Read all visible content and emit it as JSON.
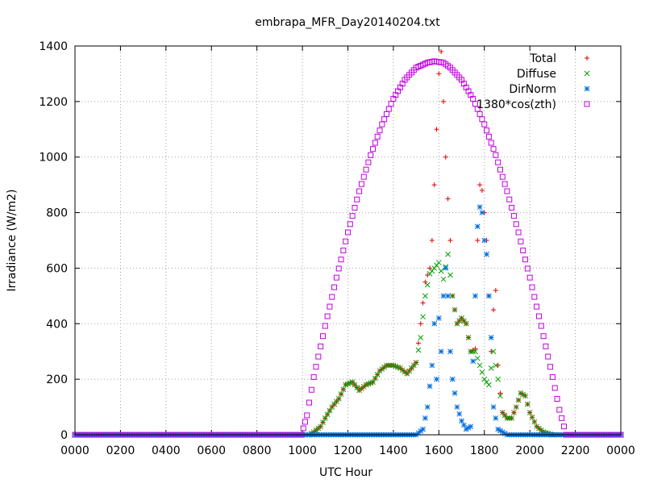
{
  "chart_data": {
    "type": "scatter",
    "title": "embrapa_MFR_Day20140204.txt",
    "xlabel": "UTC Hour",
    "ylabel": "Irradiance (W/m2)",
    "xlim": [
      0,
      24
    ],
    "ylim": [
      0,
      1400
    ],
    "x_ticks": [
      0,
      2,
      4,
      6,
      8,
      10,
      12,
      14,
      16,
      18,
      20,
      22,
      24
    ],
    "x_tick_labels": [
      "0000",
      "0200",
      "0400",
      "0600",
      "0800",
      "1000",
      "1200",
      "1400",
      "1600",
      "1800",
      "2000",
      "2200",
      "0000"
    ],
    "y_ticks": [
      0,
      200,
      400,
      600,
      800,
      1000,
      1200,
      1400
    ],
    "y_tick_labels": [
      "0",
      "200",
      "400",
      "600",
      "800",
      "1000",
      "1200",
      "1400"
    ],
    "grid": true,
    "legend_position": "top-right",
    "series": [
      {
        "name": "Total",
        "marker": "plus",
        "color": "#e00000",
        "points": [
          [
            0,
            0
          ],
          [
            2,
            0
          ],
          [
            4,
            0
          ],
          [
            6,
            0
          ],
          [
            8,
            0
          ],
          [
            10,
            0
          ],
          [
            10.3,
            0
          ],
          [
            10.5,
            10
          ],
          [
            10.8,
            30
          ],
          [
            11,
            60
          ],
          [
            11.3,
            100
          ],
          [
            11.6,
            130
          ],
          [
            11.9,
            180
          ],
          [
            12.2,
            190
          ],
          [
            12.5,
            160
          ],
          [
            12.8,
            180
          ],
          [
            13.1,
            190
          ],
          [
            13.4,
            230
          ],
          [
            13.7,
            250
          ],
          [
            14,
            250
          ],
          [
            14.3,
            240
          ],
          [
            14.6,
            220
          ],
          [
            15,
            260
          ],
          [
            15.2,
            400
          ],
          [
            15.4,
            550
          ],
          [
            15.6,
            600
          ],
          [
            15.7,
            700
          ],
          [
            15.8,
            900
          ],
          [
            15.9,
            1100
          ],
          [
            16,
            1300
          ],
          [
            16.1,
            1380
          ],
          [
            16.2,
            1200
          ],
          [
            16.3,
            1000
          ],
          [
            16.4,
            850
          ],
          [
            16.5,
            700
          ],
          [
            16.6,
            500
          ],
          [
            16.8,
            400
          ],
          [
            17,
            420
          ],
          [
            17.2,
            400
          ],
          [
            17.4,
            300
          ],
          [
            17.6,
            310
          ],
          [
            17.7,
            700
          ],
          [
            17.8,
            900
          ],
          [
            17.9,
            880
          ],
          [
            18,
            800
          ],
          [
            18.1,
            700
          ],
          [
            18.2,
            500
          ],
          [
            18.3,
            300
          ],
          [
            18.4,
            450
          ],
          [
            18.5,
            520
          ],
          [
            18.6,
            250
          ],
          [
            18.7,
            150
          ],
          [
            18.8,
            80
          ],
          [
            19,
            60
          ],
          [
            19.2,
            60
          ],
          [
            19.4,
            100
          ],
          [
            19.6,
            150
          ],
          [
            19.8,
            140
          ],
          [
            20,
            80
          ],
          [
            20.3,
            30
          ],
          [
            20.6,
            10
          ],
          [
            21,
            0
          ],
          [
            22,
            0
          ],
          [
            24,
            0
          ]
        ]
      },
      {
        "name": "Diffuse",
        "marker": "cross",
        "color": "#00a000",
        "points": [
          [
            10.3,
            0
          ],
          [
            10.5,
            10
          ],
          [
            10.8,
            30
          ],
          [
            11,
            60
          ],
          [
            11.3,
            100
          ],
          [
            11.6,
            130
          ],
          [
            11.9,
            180
          ],
          [
            12.2,
            190
          ],
          [
            12.5,
            160
          ],
          [
            12.8,
            180
          ],
          [
            13.1,
            190
          ],
          [
            13.4,
            230
          ],
          [
            13.7,
            250
          ],
          [
            14,
            250
          ],
          [
            14.3,
            240
          ],
          [
            14.6,
            220
          ],
          [
            15,
            260
          ],
          [
            15.2,
            350
          ],
          [
            15.4,
            500
          ],
          [
            15.6,
            580
          ],
          [
            15.8,
            600
          ],
          [
            16,
            620
          ],
          [
            16.2,
            560
          ],
          [
            16.4,
            650
          ],
          [
            16.6,
            500
          ],
          [
            16.8,
            400
          ],
          [
            17,
            420
          ],
          [
            17.2,
            400
          ],
          [
            17.4,
            300
          ],
          [
            17.6,
            300
          ],
          [
            17.8,
            250
          ],
          [
            18,
            200
          ],
          [
            18.2,
            180
          ],
          [
            18.4,
            300
          ],
          [
            18.6,
            200
          ],
          [
            18.8,
            80
          ],
          [
            19,
            60
          ],
          [
            19.2,
            60
          ],
          [
            19.4,
            100
          ],
          [
            19.6,
            150
          ],
          [
            19.8,
            140
          ],
          [
            20,
            80
          ],
          [
            20.3,
            30
          ],
          [
            20.6,
            10
          ],
          [
            21,
            0
          ]
        ]
      },
      {
        "name": "DirNorm",
        "marker": "star",
        "color": "#0070e0",
        "points": [
          [
            0,
            0
          ],
          [
            4,
            0
          ],
          [
            8,
            0
          ],
          [
            10,
            0
          ],
          [
            12,
            0
          ],
          [
            14,
            0
          ],
          [
            15,
            0
          ],
          [
            15.3,
            20
          ],
          [
            15.5,
            100
          ],
          [
            15.7,
            250
          ],
          [
            15.8,
            400
          ],
          [
            15.9,
            200
          ],
          [
            16,
            420
          ],
          [
            16.1,
            300
          ],
          [
            16.2,
            500
          ],
          [
            16.3,
            600
          ],
          [
            16.4,
            500
          ],
          [
            16.5,
            300
          ],
          [
            16.6,
            200
          ],
          [
            16.8,
            100
          ],
          [
            17,
            50
          ],
          [
            17.2,
            20
          ],
          [
            17.4,
            30
          ],
          [
            17.6,
            500
          ],
          [
            17.7,
            750
          ],
          [
            17.8,
            820
          ],
          [
            17.9,
            800
          ],
          [
            18,
            700
          ],
          [
            18.1,
            650
          ],
          [
            18.2,
            500
          ],
          [
            18.3,
            350
          ],
          [
            18.4,
            100
          ],
          [
            18.6,
            20
          ],
          [
            19,
            0
          ],
          [
            20,
            0
          ],
          [
            22,
            0
          ],
          [
            24,
            0
          ]
        ]
      },
      {
        "name": "1380*cos(zth)",
        "marker": "square",
        "color": "#c000e0",
        "points": [
          [
            0,
            0
          ],
          [
            2,
            0
          ],
          [
            4,
            0
          ],
          [
            6,
            0
          ],
          [
            8,
            0
          ],
          [
            9.96,
            0
          ],
          [
            10.2,
            70
          ],
          [
            10.5,
            208
          ],
          [
            11,
            392
          ],
          [
            11.5,
            566
          ],
          [
            12,
            729
          ],
          [
            12.5,
            877
          ],
          [
            13,
            1007
          ],
          [
            13.5,
            1118
          ],
          [
            14,
            1210
          ],
          [
            14.5,
            1278
          ],
          [
            15,
            1322
          ],
          [
            15.5,
            1340
          ],
          [
            15.8,
            1345
          ],
          [
            16.2,
            1340
          ],
          [
            16.5,
            1322
          ],
          [
            17,
            1278
          ],
          [
            17.5,
            1210
          ],
          [
            18,
            1118
          ],
          [
            18.5,
            1007
          ],
          [
            19,
            877
          ],
          [
            19.5,
            729
          ],
          [
            20,
            566
          ],
          [
            20.5,
            392
          ],
          [
            21,
            208
          ],
          [
            21.3,
            90
          ],
          [
            21.6,
            0
          ],
          [
            22,
            0
          ],
          [
            24,
            0
          ]
        ]
      }
    ]
  }
}
